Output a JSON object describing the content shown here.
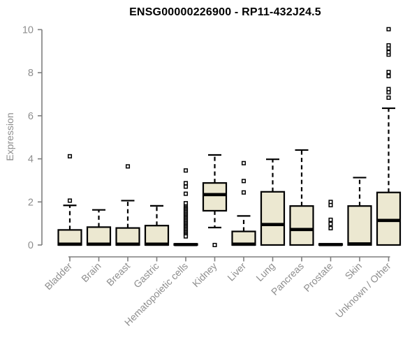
{
  "window": {
    "title": "ENSG00000226900 - RP11-432J24.5"
  },
  "chart_data": {
    "type": "boxplot",
    "title": "ENSG00000226900 - RP11-432J24.5",
    "xlabel": "",
    "ylabel": "Expression",
    "ylim": [
      0,
      10
    ],
    "yticks": [
      0,
      2,
      4,
      6,
      8,
      10
    ],
    "grid": false,
    "legend": "none",
    "categories": [
      "Bladder",
      "Brain",
      "Breast",
      "Gastric",
      "Hematopoietic cells",
      "Kidney",
      "Liver",
      "Lung",
      "Pancreas",
      "Prostate",
      "Skin",
      "Unknown / Other"
    ],
    "series": [
      {
        "name": "Bladder",
        "q1": 0,
        "median": 0.04,
        "q3": 0.7,
        "whisker_low": 0,
        "whisker_high": 1.84,
        "outliers": [
          2.06,
          4.12
        ]
      },
      {
        "name": "Brain",
        "q1": 0,
        "median": 0.04,
        "q3": 0.83,
        "whisker_low": 0,
        "whisker_high": 1.63,
        "outliers": []
      },
      {
        "name": "Breast",
        "q1": 0,
        "median": 0.04,
        "q3": 0.79,
        "whisker_low": 0,
        "whisker_high": 2.06,
        "outliers": [
          3.65
        ]
      },
      {
        "name": "Gastric",
        "q1": 0,
        "median": 0.04,
        "q3": 0.9,
        "whisker_low": 0,
        "whisker_high": 1.82,
        "outliers": []
      },
      {
        "name": "Hematopoietic cells",
        "q1": 0,
        "median": 0.02,
        "q3": 0.05,
        "whisker_low": 0,
        "whisker_high": 0.05,
        "outliers": [
          3.46,
          2.87,
          2.71,
          2.38,
          1.94,
          1.78,
          1.72,
          1.66,
          1.6,
          1.54,
          1.48,
          1.42,
          1.36,
          1.3,
          1.24,
          1.18,
          1.12,
          1.06,
          1.0,
          0.94,
          0.88,
          0.82,
          0.76,
          0.7,
          0.64,
          0.58,
          0.52,
          0.46,
          0.4
        ]
      },
      {
        "name": "Kidney",
        "q1": 1.59,
        "median": 2.34,
        "q3": 2.88,
        "whisker_low": 0.81,
        "whisker_high": 4.18,
        "outliers": [
          0.0
        ]
      },
      {
        "name": "Liver",
        "q1": 0,
        "median": 0.04,
        "q3": 0.63,
        "whisker_low": 0,
        "whisker_high": 1.35,
        "outliers": [
          2.44,
          2.97,
          3.8
        ]
      },
      {
        "name": "Lung",
        "q1": 0,
        "median": 0.95,
        "q3": 2.47,
        "whisker_low": 0,
        "whisker_high": 3.98,
        "outliers": []
      },
      {
        "name": "Pancreas",
        "q1": 0,
        "median": 0.72,
        "q3": 1.81,
        "whisker_low": 0,
        "whisker_high": 4.41,
        "outliers": []
      },
      {
        "name": "Prostate",
        "q1": 0,
        "median": 0.02,
        "q3": 0.05,
        "whisker_low": 0,
        "whisker_high": 0.05,
        "outliers": [
          2.0,
          1.85,
          1.17,
          0.98,
          0.78
        ]
      },
      {
        "name": "Skin",
        "q1": 0,
        "median": 0.05,
        "q3": 1.81,
        "whisker_low": 0,
        "whisker_high": 3.13,
        "outliers": []
      },
      {
        "name": "Unknown / Other",
        "q1": 0,
        "median": 1.14,
        "q3": 2.44,
        "whisker_low": 0,
        "whisker_high": 6.35,
        "outliers": [
          6.84,
          7.09,
          7.24,
          7.84,
          8.03,
          8.84,
          8.95,
          9.13,
          9.27,
          10.02
        ]
      }
    ],
    "colors": {
      "box_fill": "#ece8d1",
      "box_border": "#000000",
      "median": "#000000",
      "whisker": "#000000",
      "outlier_stroke": "#000000",
      "axis": "#7e7e7e",
      "tick_label": "#8e8e8e",
      "title": "#000000",
      "background": "#ffffff"
    }
  }
}
